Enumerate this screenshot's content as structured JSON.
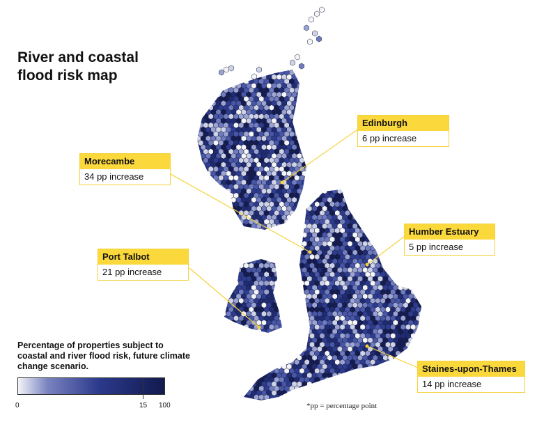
{
  "title": "River and coastal flood risk map",
  "callouts": [
    {
      "name": "Edinburgh",
      "value": "6 pp increase"
    },
    {
      "name": "Morecambe",
      "value": "34 pp increase"
    },
    {
      "name": "Humber Estuary",
      "value": "5 pp increase"
    },
    {
      "name": "Port Talbot",
      "value": "21 pp increase"
    },
    {
      "name": "Staines-upon-Thames",
      "value": "14 pp increase"
    }
  ],
  "legend": {
    "title": "Percentage of properties subject to coastal and river flood risk, future climate change scenario.",
    "min_label": "0",
    "mid_label": "15",
    "max_label": "100",
    "colors": {
      "low": "#f3f4f8",
      "mid": "#2c3a8c",
      "high": "#121a4e"
    }
  },
  "footnote": "*pp = percentage point",
  "colors": {
    "highlight": "#fbd83b",
    "marker": "#f5d23a"
  }
}
